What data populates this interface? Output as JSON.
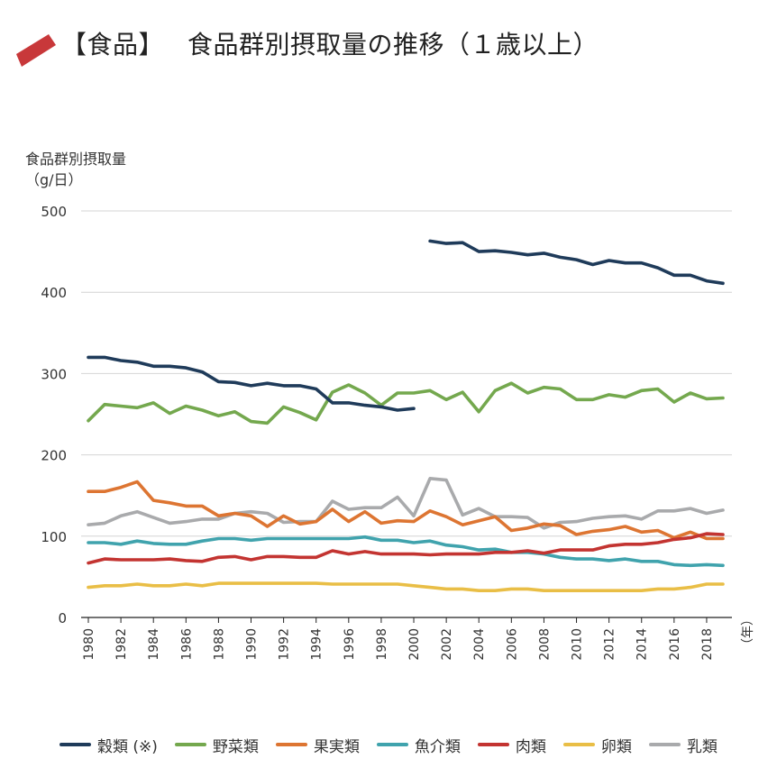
{
  "header": {
    "bracket_label": "【食品】",
    "title": "食品群別摂取量の推移（１歳以上）",
    "accent_color": "#c8383a"
  },
  "chart_data": {
    "type": "line",
    "ylabel_line1": "食品群別摂取量",
    "ylabel_line2": "（g/日）",
    "x_unit": "（年）",
    "ylim": [
      0,
      500
    ],
    "yticks": [
      0,
      100,
      200,
      300,
      400,
      500
    ],
    "grid": "horizontal",
    "legend_position": "bottom",
    "x": [
      1980,
      1981,
      1982,
      1983,
      1984,
      1985,
      1986,
      1987,
      1988,
      1989,
      1990,
      1991,
      1992,
      1993,
      1994,
      1995,
      1996,
      1997,
      1998,
      1999,
      2000,
      2001,
      2002,
      2003,
      2004,
      2005,
      2006,
      2007,
      2008,
      2009,
      2010,
      2011,
      2012,
      2013,
      2014,
      2015,
      2016,
      2017,
      2018,
      2019
    ],
    "xticks": [
      "1980",
      "1982",
      "1984",
      "1986",
      "1988",
      "1990",
      "1992",
      "1994",
      "1996",
      "1998",
      "2000",
      "2002",
      "2004",
      "2006",
      "2008",
      "2010",
      "2012",
      "2014",
      "2016",
      "2018"
    ],
    "series": [
      {
        "name": "穀類 (※)",
        "color": "#1f3b5a",
        "values": [
          320,
          320,
          316,
          314,
          309,
          309,
          307,
          302,
          290,
          289,
          285,
          288,
          285,
          285,
          281,
          264,
          264,
          261,
          259,
          255,
          257,
          null,
          null,
          null,
          null,
          null,
          null,
          null,
          null,
          null,
          null,
          null,
          null,
          null,
          null,
          null,
          null,
          null,
          null,
          null
        ],
        "values_b": [
          null,
          null,
          null,
          null,
          null,
          null,
          null,
          null,
          null,
          null,
          null,
          null,
          null,
          null,
          null,
          null,
          null,
          null,
          null,
          null,
          null,
          463,
          460,
          461,
          450,
          451,
          449,
          446,
          448,
          443,
          440,
          434,
          439,
          436,
          436,
          430,
          421,
          421,
          414,
          411
        ]
      },
      {
        "name": "野菜類",
        "color": "#74a84e",
        "values": [
          242,
          262,
          260,
          258,
          264,
          251,
          260,
          255,
          248,
          253,
          241,
          239,
          259,
          252,
          243,
          277,
          286,
          276,
          261,
          276,
          276,
          279,
          268,
          277,
          253,
          279,
          288,
          276,
          283,
          281,
          268,
          268,
          274,
          271,
          279,
          281,
          265,
          276,
          269,
          270
        ]
      },
      {
        "name": "果実類",
        "color": "#dd7532",
        "values": [
          155,
          155,
          160,
          167,
          144,
          141,
          137,
          137,
          125,
          128,
          125,
          112,
          125,
          115,
          118,
          133,
          118,
          130,
          116,
          119,
          118,
          131,
          124,
          114,
          119,
          124,
          107,
          110,
          115,
          113,
          102,
          106,
          108,
          112,
          105,
          107,
          98,
          105,
          97,
          97
        ]
      },
      {
        "name": "魚介類",
        "color": "#40a3ad",
        "values": [
          92,
          92,
          90,
          94,
          91,
          90,
          90,
          94,
          97,
          97,
          95,
          97,
          97,
          97,
          97,
          97,
          97,
          99,
          95,
          95,
          92,
          94,
          89,
          87,
          83,
          84,
          80,
          80,
          78,
          74,
          72,
          72,
          70,
          72,
          69,
          69,
          65,
          64,
          65,
          64
        ]
      },
      {
        "name": "肉類",
        "color": "#c33431",
        "values": [
          67,
          72,
          71,
          71,
          71,
          72,
          70,
          69,
          74,
          75,
          71,
          75,
          75,
          74,
          74,
          82,
          78,
          81,
          78,
          78,
          78,
          77,
          78,
          78,
          78,
          80,
          80,
          82,
          79,
          83,
          83,
          83,
          88,
          90,
          90,
          92,
          96,
          98,
          103,
          102
        ]
      },
      {
        "name": "卵類",
        "color": "#e9be46",
        "values": [
          37,
          39,
          39,
          41,
          39,
          39,
          41,
          39,
          42,
          42,
          42,
          42,
          42,
          42,
          42,
          41,
          41,
          41,
          41,
          41,
          39,
          37,
          35,
          35,
          33,
          33,
          35,
          35,
          33,
          33,
          33,
          33,
          33,
          33,
          33,
          35,
          35,
          37,
          41,
          41
        ]
      },
      {
        "name": "乳類",
        "color": "#a9aaac",
        "values": [
          114,
          116,
          125,
          130,
          123,
          116,
          118,
          121,
          121,
          128,
          130,
          128,
          117,
          118,
          118,
          143,
          133,
          135,
          135,
          148,
          125,
          171,
          169,
          126,
          134,
          124,
          124,
          123,
          110,
          117,
          118,
          122,
          124,
          125,
          121,
          131,
          131,
          134,
          128,
          132
        ]
      }
    ]
  }
}
